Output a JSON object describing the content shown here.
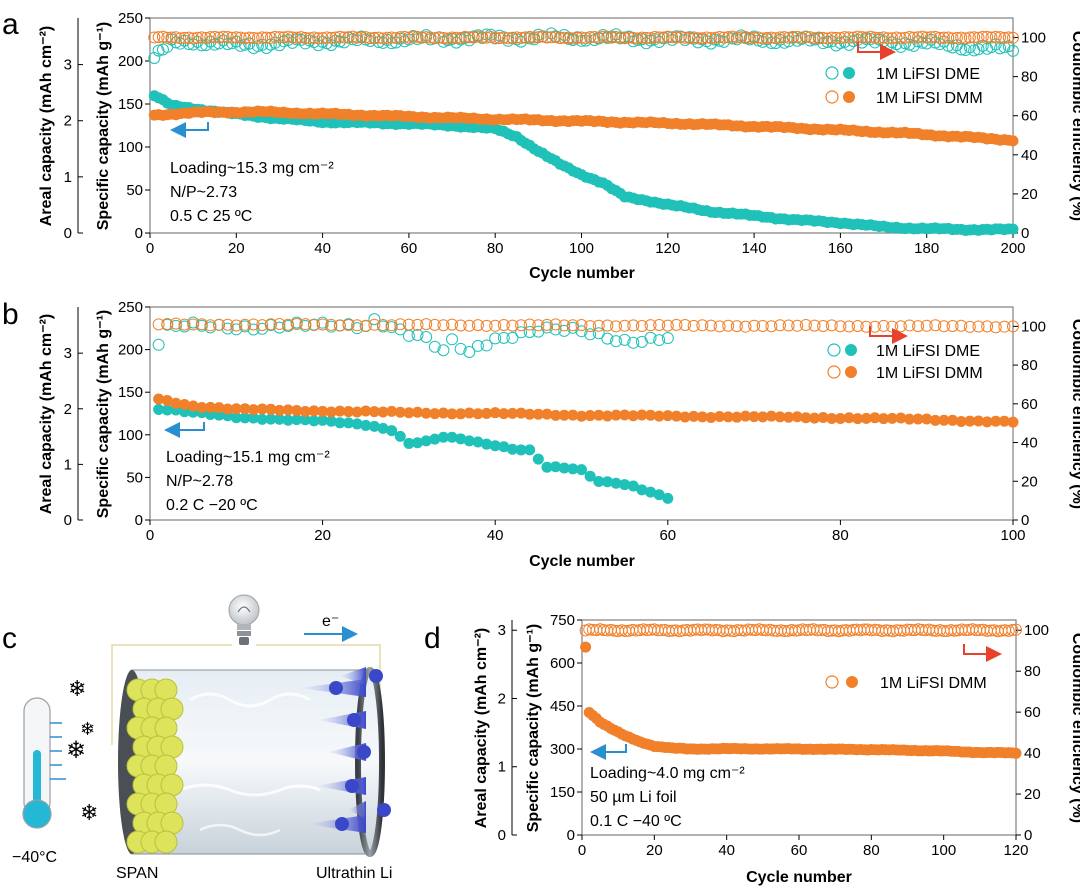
{
  "colors": {
    "teal": "#1fc1b8",
    "orange": "#f0802a",
    "red_arrow": "#e8412c",
    "blue_arrow": "#2a8fd0",
    "frame": "#808080"
  },
  "panels": {
    "a": {
      "letter": "a",
      "xlabel": "Cycle number",
      "ylabel_specific": "Specific capacity (mAh g⁻¹)",
      "ylabel_areal": "Areal capacity (mAh cm⁻²)",
      "ylabel_ce": "Coulombic efficiency (%)",
      "annotations": [
        "Loading~15.3 mg cm⁻²",
        "N/P~2.73",
        "0.5 C    25 ºC"
      ],
      "legend": [
        "1M LiFSI DME",
        "1M LiFSI DMM"
      ]
    },
    "b": {
      "letter": "b",
      "xlabel": "Cycle number",
      "ylabel_specific": "Specific capacity (mAh g⁻¹)",
      "ylabel_areal": "Areal capacity (mAh cm⁻²)",
      "ylabel_ce": "Coulombic efficiency (%)",
      "annotations": [
        "Loading~15.1 mg cm⁻²",
        "N/P~2.78",
        "0.2 C    −20 ºC"
      ],
      "legend": [
        "1M LiFSI DME",
        "1M LiFSI DMM"
      ]
    },
    "c": {
      "letter": "c",
      "temperature": "−40°C",
      "cathode": "SPAN",
      "anode": "Ultrathin Li",
      "electron": "e⁻"
    },
    "d": {
      "letter": "d",
      "xlabel": "Cycle number",
      "ylabel_specific": "Specific capacity (mAh g⁻¹)",
      "ylabel_areal": "Areal capacity (mAh cm⁻²)",
      "ylabel_ce": "Coulombic efficiency (%)",
      "annotations": [
        "Loading~4.0 mg cm⁻²",
        "50 µm Li foil",
        "0.1 C    −40 ºC"
      ],
      "legend": [
        "1M LiFSI DMM"
      ]
    }
  },
  "chart_data": [
    {
      "type": "scatter",
      "panel": "a",
      "xlabel": "Cycle number",
      "ylabel": "Specific capacity (mAh g⁻¹)",
      "y2label": "Coulombic efficiency (%)",
      "y3label": "Areal capacity (mAh cm⁻²)",
      "xlim": [
        0,
        200
      ],
      "ylim": [
        0,
        250
      ],
      "y2lim": [
        0,
        110
      ],
      "y3lim": [
        0,
        3.83
      ],
      "xticks": [
        0,
        20,
        40,
        60,
        80,
        100,
        120,
        140,
        160,
        180,
        200
      ],
      "yticks": [
        0,
        50,
        100,
        150,
        200,
        250
      ],
      "y2ticks": [
        0,
        20,
        40,
        60,
        80,
        100
      ],
      "y3ticks": [
        0,
        1,
        2,
        3
      ],
      "series": [
        {
          "name": "1M LiFSI DME",
          "kind": "capacity",
          "color": "#1fc1b8",
          "filled": true,
          "x": [
            1,
            5,
            10,
            20,
            30,
            40,
            50,
            60,
            70,
            80,
            85,
            90,
            95,
            100,
            105,
            110,
            115,
            120,
            130,
            140,
            150,
            160,
            170,
            180,
            190,
            200
          ],
          "y": [
            160,
            148,
            145,
            138,
            133,
            129,
            128,
            127,
            125,
            121,
            112,
            95,
            80,
            68,
            58,
            42,
            38,
            33,
            25,
            20,
            15,
            12,
            7,
            5,
            4,
            4
          ]
        },
        {
          "name": "1M LiFSI DMM",
          "kind": "capacity",
          "color": "#f0802a",
          "filled": true,
          "x": [
            1,
            10,
            25,
            50,
            75,
            100,
            125,
            150,
            175,
            200
          ],
          "y": [
            137,
            140,
            141,
            137,
            133,
            130,
            127,
            122,
            116,
            108
          ]
        },
        {
          "name": "1M LiFSI DME",
          "kind": "ce",
          "color": "#1fc1b8",
          "filled": false,
          "x": [
            1,
            3,
            5,
            10,
            20,
            40,
            60,
            80,
            100,
            120,
            140,
            160,
            180,
            190,
            200
          ],
          "y": [
            90,
            93,
            97,
            98,
            96,
            98,
            99,
            100,
            100,
            99,
            99,
            98,
            97,
            95,
            94
          ]
        },
        {
          "name": "1M LiFSI DMM",
          "kind": "ce",
          "color": "#f0802a",
          "filled": false,
          "x": [
            1,
            200
          ],
          "y": [
            100,
            100
          ]
        }
      ]
    },
    {
      "type": "scatter",
      "panel": "b",
      "xlabel": "Cycle number",
      "ylabel": "Specific capacity (mAh g⁻¹)",
      "y2label": "Coulombic efficiency (%)",
      "y3label": "Areal capacity (mAh cm⁻²)",
      "xlim": [
        0,
        100
      ],
      "ylim": [
        0,
        250
      ],
      "y2lim": [
        0,
        110
      ],
      "y3lim": [
        0,
        3.83
      ],
      "xticks": [
        0,
        20,
        40,
        60,
        80,
        100
      ],
      "yticks": [
        0,
        50,
        100,
        150,
        200,
        250
      ],
      "y2ticks": [
        0,
        20,
        40,
        60,
        80,
        100
      ],
      "y3ticks": [
        0,
        1,
        2,
        3
      ],
      "series": [
        {
          "name": "1M LiFSI DME",
          "kind": "capacity",
          "color": "#1fc1b8",
          "filled": true,
          "x": [
            1,
            5,
            10,
            15,
            20,
            25,
            28,
            30,
            32,
            34,
            36,
            38,
            40,
            42,
            44,
            46,
            48,
            50,
            52,
            54,
            56,
            58,
            60
          ],
          "y": [
            130,
            126,
            121,
            118,
            116,
            112,
            106,
            90,
            92,
            97,
            95,
            91,
            88,
            84,
            82,
            62,
            61,
            58,
            45,
            44,
            40,
            33,
            26
          ]
        },
        {
          "name": "1M LiFSI DMM",
          "kind": "capacity",
          "color": "#f0802a",
          "filled": true,
          "x": [
            1,
            5,
            10,
            20,
            30,
            40,
            50,
            60,
            70,
            80,
            90,
            100
          ],
          "y": [
            142,
            134,
            130,
            128,
            126,
            125,
            123,
            122,
            121,
            120,
            118,
            115
          ]
        },
        {
          "name": "1M LiFSI DME",
          "kind": "ce",
          "color": "#1fc1b8",
          "filled": false,
          "x": [
            1,
            2,
            5,
            10,
            20,
            25,
            26,
            30,
            32,
            34,
            35,
            37,
            38,
            40,
            42,
            45,
            50,
            55,
            60
          ],
          "y": [
            91,
            99,
            100,
            100,
            100,
            101,
            104,
            96,
            93,
            86,
            92,
            86,
            90,
            94,
            96,
            98,
            97,
            93,
            94
          ]
        },
        {
          "name": "1M LiFSI DMM",
          "kind": "ce",
          "color": "#f0802a",
          "filled": false,
          "x": [
            1,
            100
          ],
          "y": [
            101,
            100
          ]
        }
      ]
    },
    {
      "type": "scatter",
      "panel": "d",
      "xlabel": "Cycle number",
      "ylabel": "Specific capacity (mAh g⁻¹)",
      "y2label": "Coulombic efficiency (%)",
      "y3label": "Areal capacity (mAh cm⁻²)",
      "xlim": [
        0,
        120
      ],
      "ylim": [
        0,
        750
      ],
      "y2lim": [
        0,
        105
      ],
      "y3lim": [
        0,
        3.15
      ],
      "xticks": [
        0,
        20,
        40,
        60,
        80,
        100,
        120
      ],
      "yticks": [
        0,
        150,
        300,
        450,
        600,
        750
      ],
      "y2ticks": [
        0,
        20,
        40,
        60,
        80,
        100
      ],
      "y3ticks": [
        0,
        1,
        2,
        3
      ],
      "series": [
        {
          "name": "1M LiFSI DMM",
          "kind": "capacity",
          "color": "#f0802a",
          "filled": true,
          "x": [
            1,
            2,
            3,
            5,
            8,
            12,
            16,
            20,
            25,
            30,
            40,
            60,
            80,
            100,
            110,
            120
          ],
          "y": [
            655,
            428,
            418,
            395,
            372,
            345,
            325,
            310,
            303,
            300,
            301,
            300,
            298,
            293,
            288,
            286
          ]
        },
        {
          "name": "1M LiFSI DMM",
          "kind": "ce",
          "color": "#f0802a",
          "filled": false,
          "x": [
            1,
            120
          ],
          "y": [
            100,
            100
          ]
        }
      ]
    }
  ]
}
